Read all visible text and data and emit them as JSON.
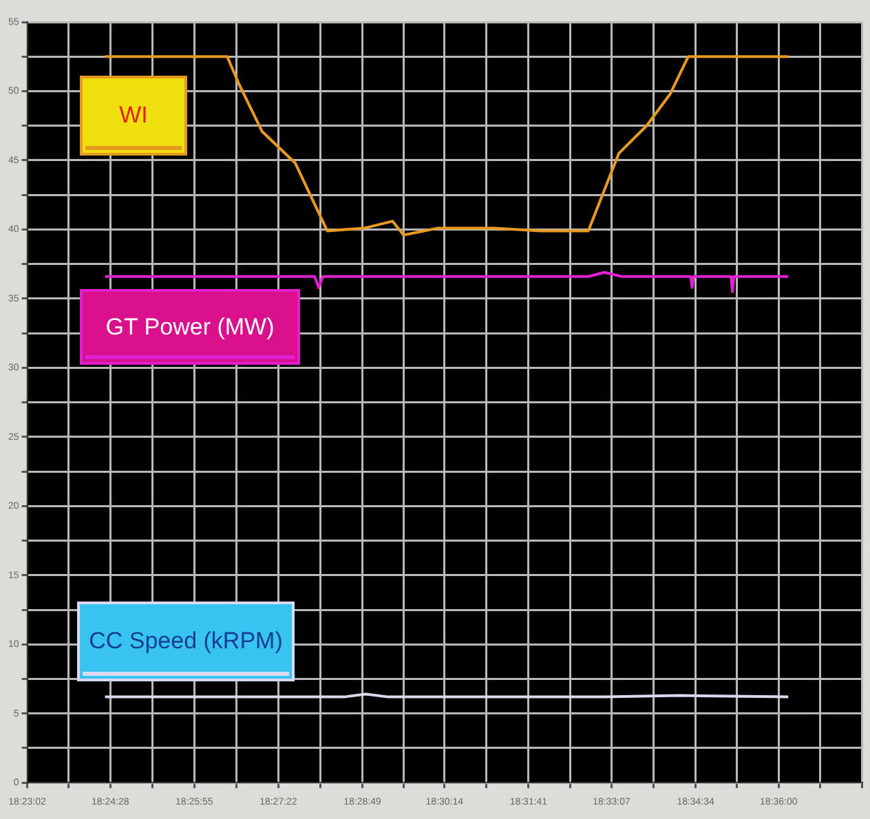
{
  "chart_data": {
    "type": "line",
    "grid": true,
    "legend": false,
    "marker": "none",
    "line_style": "solid",
    "xlim": [
      18.38389,
      18.62389
    ],
    "ylim": [
      0,
      55
    ],
    "xticks": [
      {
        "value": 18.38389,
        "label": "18:23:02"
      },
      {
        "value": 18.39583,
        "label": null
      },
      {
        "value": 18.40778,
        "label": "18:24:28"
      },
      {
        "value": 18.41986,
        "label": null
      },
      {
        "value": 18.43194,
        "label": "18:25:55"
      },
      {
        "value": 18.44403,
        "label": null
      },
      {
        "value": 18.45611,
        "label": "18:27:22"
      },
      {
        "value": 18.46819,
        "label": null
      },
      {
        "value": 18.48028,
        "label": "18:28:49"
      },
      {
        "value": 18.49208,
        "label": null
      },
      {
        "value": 18.50389,
        "label": "18:30:14"
      },
      {
        "value": 18.51597,
        "label": null
      },
      {
        "value": 18.52806,
        "label": "18:31:41"
      },
      {
        "value": 18.54,
        "label": null
      },
      {
        "value": 18.55194,
        "label": "18:33:07"
      },
      {
        "value": 18.56403,
        "label": null
      },
      {
        "value": 18.57611,
        "label": "18:34:34"
      },
      {
        "value": 18.58806,
        "label": null
      },
      {
        "value": 18.6,
        "label": "18:36:00"
      },
      {
        "value": 18.61194,
        "label": null
      },
      {
        "value": 18.62389,
        "label": null
      }
    ],
    "yticks": [
      0,
      {
        "value": 2.5,
        "label": null
      },
      5,
      {
        "value": 7.5,
        "label": null
      },
      10,
      {
        "value": 12.5,
        "label": null
      },
      15,
      {
        "value": 17.5,
        "label": null
      },
      20,
      {
        "value": 22.5,
        "label": null
      },
      25,
      {
        "value": 27.5,
        "label": null
      },
      30,
      {
        "value": 32.5,
        "label": null
      },
      35,
      {
        "value": 37.5,
        "label": null
      },
      40,
      {
        "value": 42.5,
        "label": null
      },
      45,
      {
        "value": 47.5,
        "label": null
      },
      50,
      {
        "value": 52.5,
        "label": null
      },
      55
    ],
    "series": [
      {
        "name": "WI",
        "color": "#e89a20",
        "x": [
          18.40626,
          18.4414,
          18.445,
          18.45139,
          18.46097,
          18.47016,
          18.48094,
          18.48893,
          18.49213,
          18.50211,
          18.51809,
          18.53127,
          18.54525,
          18.55403,
          18.56202,
          18.56881,
          18.574,
          18.60276
        ],
        "values": [
          52.5,
          52.5,
          50.4,
          47.1,
          44.8,
          39.9,
          40.1,
          40.6,
          39.6,
          40.1,
          40.1,
          39.9,
          39.9,
          45.5,
          47.5,
          49.8,
          52.5,
          52.5
        ]
      },
      {
        "name": "GT Power (MW)",
        "color": "#e020d0",
        "x": [
          18.40626,
          18.46656,
          18.4677,
          18.4689,
          18.5,
          18.5453,
          18.5499,
          18.5549,
          18.5747,
          18.5751,
          18.5755,
          18.5863,
          18.5867,
          18.5871,
          18.60276
        ],
        "values": [
          36.6,
          36.6,
          35.8,
          36.6,
          36.6,
          36.6,
          36.9,
          36.6,
          36.6,
          35.8,
          36.6,
          36.6,
          35.5,
          36.6,
          36.6
        ]
      },
      {
        "name": "CC Speed (kRPM)",
        "color": "#d8d8f0",
        "x": [
          18.40626,
          18.475,
          18.4813,
          18.4877,
          18.55,
          18.5719,
          18.60276
        ],
        "values": [
          6.2,
          6.2,
          6.4,
          6.2,
          6.2,
          6.3,
          6.2
        ]
      }
    ]
  }
}
